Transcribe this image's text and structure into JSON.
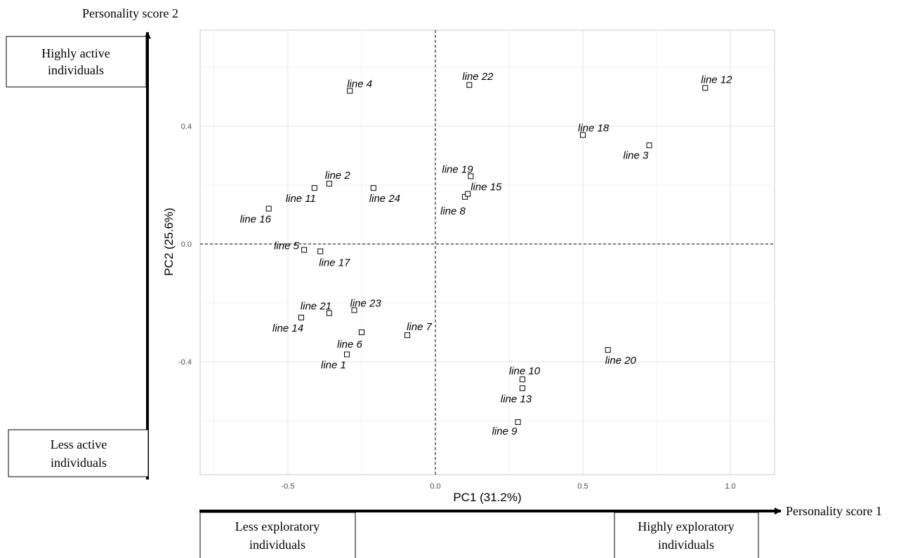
{
  "chart_data": {
    "type": "scatter",
    "xlabel": "PC1 (31.2%)",
    "ylabel": "PC2 (25.6%)",
    "xlim": [
      -0.8,
      1.15
    ],
    "ylim": [
      -0.8,
      0.73
    ],
    "x_ticks": [
      -0.5,
      0.0,
      0.5,
      1.0
    ],
    "x_tick_labels": [
      "-0.5",
      "0.0",
      "0.5",
      "1.0"
    ],
    "y_ticks": [
      -0.4,
      0.0,
      0.4
    ],
    "y_tick_labels": [
      "-0.4",
      "0.0",
      "0.4"
    ],
    "grid": true,
    "reference_lines": {
      "x": 0,
      "y": 0,
      "style": "dashed"
    },
    "points": [
      {
        "label": "line 1",
        "x": -0.3,
        "y": -0.375
      },
      {
        "label": "line 2",
        "x": -0.36,
        "y": 0.205
      },
      {
        "label": "line 3",
        "x": 0.725,
        "y": 0.335
      },
      {
        "label": "line 4",
        "x": -0.29,
        "y": 0.52
      },
      {
        "label": "line 5",
        "x": -0.445,
        "y": -0.02
      },
      {
        "label": "line 6",
        "x": -0.25,
        "y": -0.3
      },
      {
        "label": "line 7",
        "x": -0.095,
        "y": -0.31
      },
      {
        "label": "line 8",
        "x": 0.1,
        "y": 0.16
      },
      {
        "label": "line 9",
        "x": 0.28,
        "y": -0.605
      },
      {
        "label": "line 10",
        "x": 0.295,
        "y": -0.46
      },
      {
        "label": "line 11",
        "x": -0.41,
        "y": 0.19
      },
      {
        "label": "line 12",
        "x": 0.915,
        "y": 0.53
      },
      {
        "label": "line 13",
        "x": 0.295,
        "y": -0.49
      },
      {
        "label": "line 14",
        "x": -0.455,
        "y": -0.25
      },
      {
        "label": "line 15",
        "x": 0.11,
        "y": 0.17
      },
      {
        "label": "line 16",
        "x": -0.565,
        "y": 0.12
      },
      {
        "label": "line 17",
        "x": -0.39,
        "y": -0.025
      },
      {
        "label": "line 18",
        "x": 0.5,
        "y": 0.37
      },
      {
        "label": "line 19",
        "x": 0.12,
        "y": 0.23
      },
      {
        "label": "line 20",
        "x": 0.585,
        "y": -0.36
      },
      {
        "label": "line 21",
        "x": -0.36,
        "y": -0.235
      },
      {
        "label": "line 22",
        "x": 0.115,
        "y": 0.54
      },
      {
        "label": "line 23",
        "x": -0.275,
        "y": -0.225
      },
      {
        "label": "line 24",
        "x": -0.21,
        "y": 0.19
      }
    ]
  },
  "outer_axes": {
    "vertical": {
      "title": "Personality score 2",
      "high_box": [
        "Highly active",
        "individuals"
      ],
      "low_box": [
        "Less active",
        "individuals"
      ]
    },
    "horizontal": {
      "title": "Personality score 1",
      "low_box": [
        "Less exploratory",
        "individuals"
      ],
      "high_box": [
        "Highly exploratory",
        "individuals"
      ]
    }
  }
}
